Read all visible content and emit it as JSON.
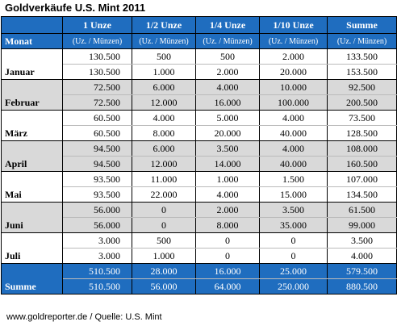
{
  "title": "Goldverkäufe U.S. Mint 2011",
  "columns": {
    "monat": "Monat",
    "c1": "1 Unze",
    "c2": "1/2 Unze",
    "c3": "1/4 Unze",
    "c4": "1/10 Unze",
    "c5": "Summe",
    "sub": "(Uz. / Münzen)"
  },
  "rows": [
    {
      "month": "Januar",
      "uz": [
        "130.500",
        "500",
        "500",
        "2.000",
        "133.500"
      ],
      "muenzen": [
        "130.500",
        "1.000",
        "2.000",
        "20.000",
        "153.500"
      ]
    },
    {
      "month": "Februar",
      "uz": [
        "72.500",
        "6.000",
        "4.000",
        "10.000",
        "92.500"
      ],
      "muenzen": [
        "72.500",
        "12.000",
        "16.000",
        "100.000",
        "200.500"
      ]
    },
    {
      "month": "März",
      "uz": [
        "60.500",
        "4.000",
        "5.000",
        "4.000",
        "73.500"
      ],
      "muenzen": [
        "60.500",
        "8.000",
        "20.000",
        "40.000",
        "128.500"
      ]
    },
    {
      "month": "April",
      "uz": [
        "94.500",
        "6.000",
        "3.500",
        "4.000",
        "108.000"
      ],
      "muenzen": [
        "94.500",
        "12.000",
        "14.000",
        "40.000",
        "160.500"
      ]
    },
    {
      "month": "Mai",
      "uz": [
        "93.500",
        "11.000",
        "1.000",
        "1.500",
        "107.000"
      ],
      "muenzen": [
        "93.500",
        "22.000",
        "4.000",
        "15.000",
        "134.500"
      ]
    },
    {
      "month": "Juni",
      "uz": [
        "56.000",
        "0",
        "2.000",
        "3.500",
        "61.500"
      ],
      "muenzen": [
        "56.000",
        "0",
        "8.000",
        "35.000",
        "99.000"
      ]
    },
    {
      "month": "Juli",
      "uz": [
        "3.000",
        "500",
        "0",
        "0",
        "3.500"
      ],
      "muenzen": [
        "3.000",
        "1.000",
        "0",
        "0",
        "4.000"
      ]
    }
  ],
  "total": {
    "month": "Summe",
    "uz": [
      "510.500",
      "28.000",
      "16.000",
      "25.000",
      "579.500"
    ],
    "muenzen": [
      "510.500",
      "56.000",
      "64.000",
      "250.000",
      "880.500"
    ]
  },
  "footer": "www.goldreporter.de / Quelle: U.S. Mint",
  "colors": {
    "header_blue": "#1f6dbf",
    "stripe_grey": "#d9d9d9"
  }
}
